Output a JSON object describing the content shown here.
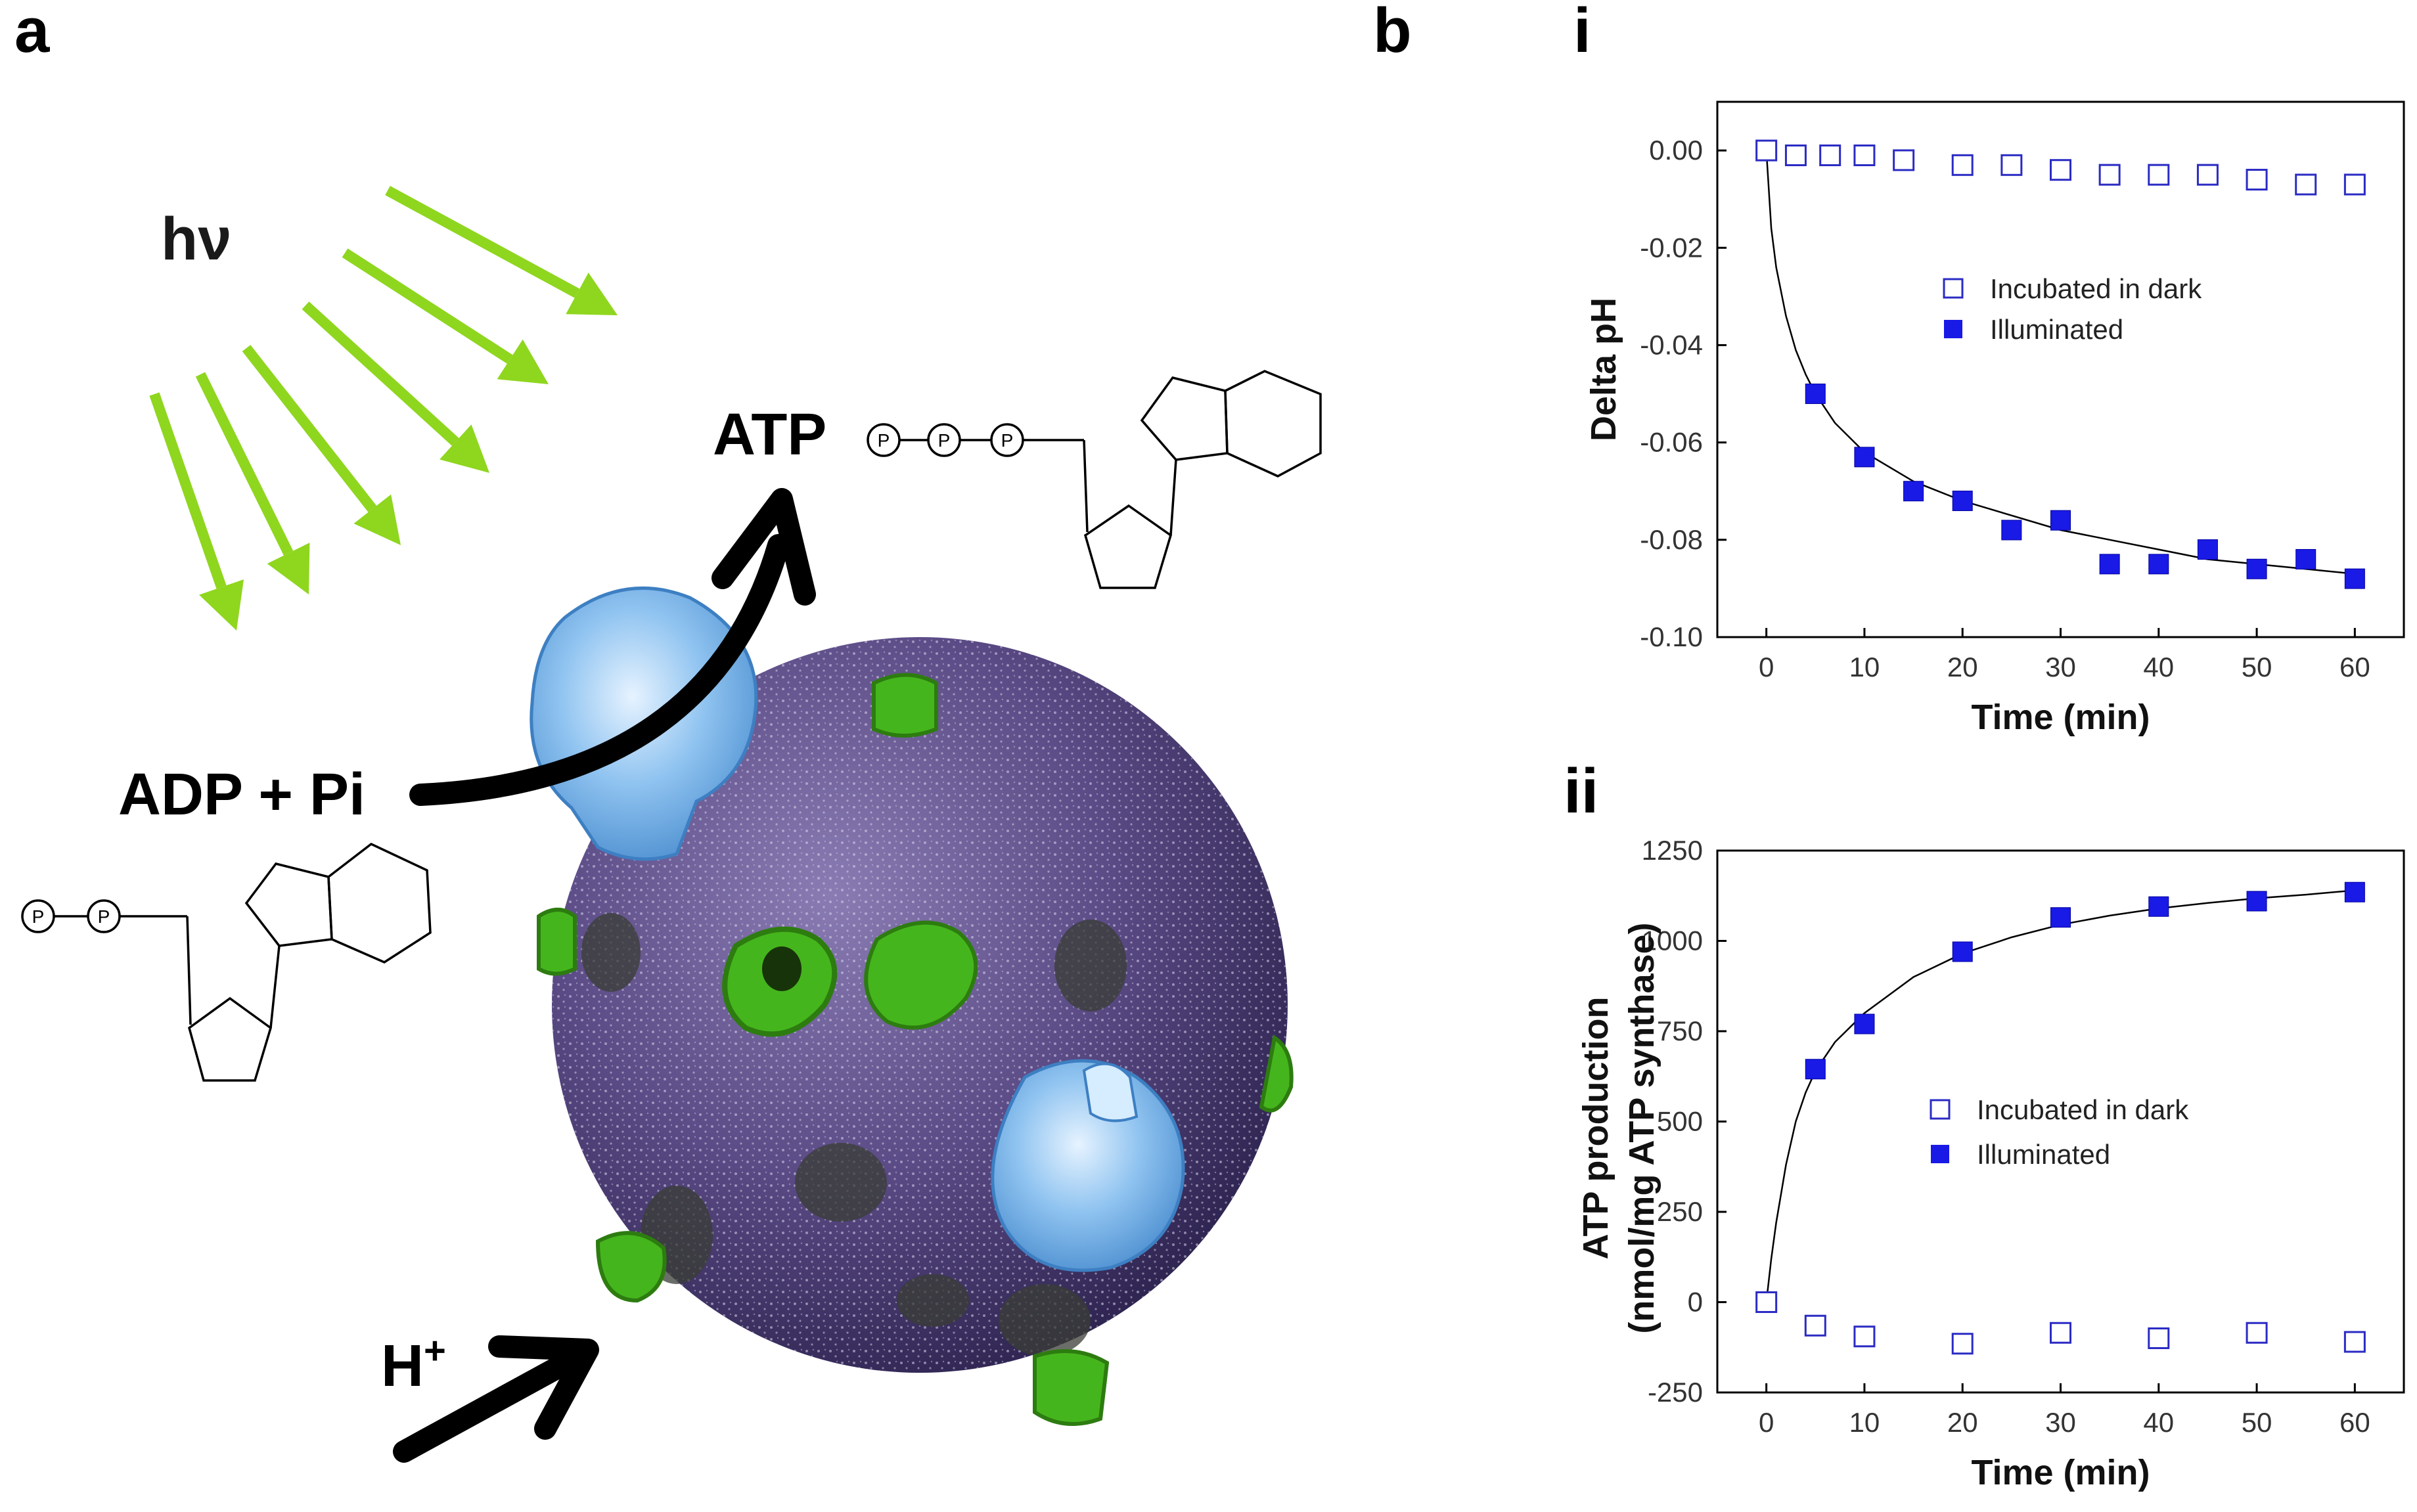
{
  "panels": {
    "a": "a",
    "b": "b",
    "i": "i",
    "ii": "ii"
  },
  "schematic": {
    "light_label": "hν",
    "atp_label": "ATP",
    "adp_label": "ADP + Pi",
    "proton_label": "H",
    "proton_sup": "+",
    "phosphate_symbol": "P",
    "colors": {
      "light_arrows": "#8fd61f",
      "vesicle": "#5a4a85",
      "bacteriorhodopsin": "#45b51d",
      "atp_synthase": "#7fb9ec"
    }
  },
  "chart_data": [
    {
      "type": "scatter",
      "panel": "i",
      "xlabel": "Time (min)",
      "ylabel": "Delta pH",
      "xlim": [
        -5,
        65
      ],
      "ylim": [
        -0.1,
        0.01
      ],
      "xticks": [
        0,
        10,
        20,
        30,
        40,
        50,
        60
      ],
      "yticks": [
        0.0,
        -0.02,
        -0.04,
        -0.06,
        -0.08,
        -0.1
      ],
      "ytick_labels": [
        "0.00",
        "-0.02",
        "-0.04",
        "-0.06",
        "-0.08",
        "-0.10"
      ],
      "grid": false,
      "legend_position": "center-right",
      "series": [
        {
          "name": "Incubated in dark",
          "marker": "open-square",
          "color": "#2b2bc4",
          "x": [
            0,
            3,
            6.5,
            10,
            14,
            20,
            25,
            30,
            35,
            40,
            45,
            50,
            55,
            60
          ],
          "y": [
            0.0,
            -0.001,
            -0.001,
            -0.001,
            -0.002,
            -0.003,
            -0.003,
            -0.004,
            -0.005,
            -0.005,
            -0.005,
            -0.006,
            -0.007,
            -0.007
          ]
        },
        {
          "name": "Illuminated",
          "marker": "filled-square",
          "color": "#1a1ae6",
          "x": [
            5,
            10,
            15,
            20,
            25,
            30,
            35,
            40,
            45,
            50,
            55,
            60
          ],
          "y": [
            -0.05,
            -0.063,
            -0.07,
            -0.072,
            -0.078,
            -0.076,
            -0.085,
            -0.085,
            -0.082,
            -0.086,
            -0.084,
            -0.088
          ]
        }
      ],
      "fit_curve": {
        "x": [
          0,
          0.5,
          1,
          2,
          3,
          4,
          5,
          7,
          10,
          15,
          20,
          25,
          30,
          35,
          40,
          45,
          50,
          55,
          60
        ],
        "y": [
          0.0,
          -0.016,
          -0.024,
          -0.034,
          -0.041,
          -0.046,
          -0.05,
          -0.056,
          -0.062,
          -0.068,
          -0.072,
          -0.075,
          -0.078,
          -0.08,
          -0.082,
          -0.084,
          -0.085,
          -0.086,
          -0.087
        ]
      }
    },
    {
      "type": "scatter",
      "panel": "ii",
      "xlabel": "Time (min)",
      "ylabel": "ATP production",
      "ylabel_line2": "(nmol/mg ATP synthase)",
      "xlim": [
        -5,
        65
      ],
      "ylim": [
        -250,
        1250
      ],
      "xticks": [
        0,
        10,
        20,
        30,
        40,
        50,
        60
      ],
      "yticks": [
        1250,
        1000,
        750,
        500,
        250,
        0,
        -250
      ],
      "ytick_labels": [
        "1250",
        "1000",
        "750",
        "500",
        "250",
        "0",
        "-250"
      ],
      "grid": false,
      "legend_position": "center-right",
      "series": [
        {
          "name": "Incubated in dark",
          "marker": "open-square",
          "color": "#2b2bc4",
          "x": [
            0,
            5,
            10,
            20,
            30,
            40,
            50,
            60
          ],
          "y": [
            0,
            -65,
            -95,
            -115,
            -85,
            -100,
            -85,
            -110
          ]
        },
        {
          "name": "Illuminated",
          "marker": "filled-square",
          "color": "#1a1ae6",
          "x": [
            5,
            10,
            20,
            30,
            40,
            50,
            60
          ],
          "y": [
            645,
            770,
            970,
            1065,
            1095,
            1110,
            1135
          ]
        }
      ],
      "fit_curve": {
        "x": [
          0,
          0.5,
          1,
          2,
          3,
          4,
          5,
          7,
          10,
          15,
          20,
          25,
          30,
          35,
          40,
          45,
          50,
          55,
          60
        ],
        "y": [
          0,
          120,
          220,
          380,
          500,
          580,
          640,
          720,
          800,
          900,
          965,
          1010,
          1045,
          1070,
          1090,
          1105,
          1118,
          1128,
          1140
        ]
      }
    }
  ]
}
